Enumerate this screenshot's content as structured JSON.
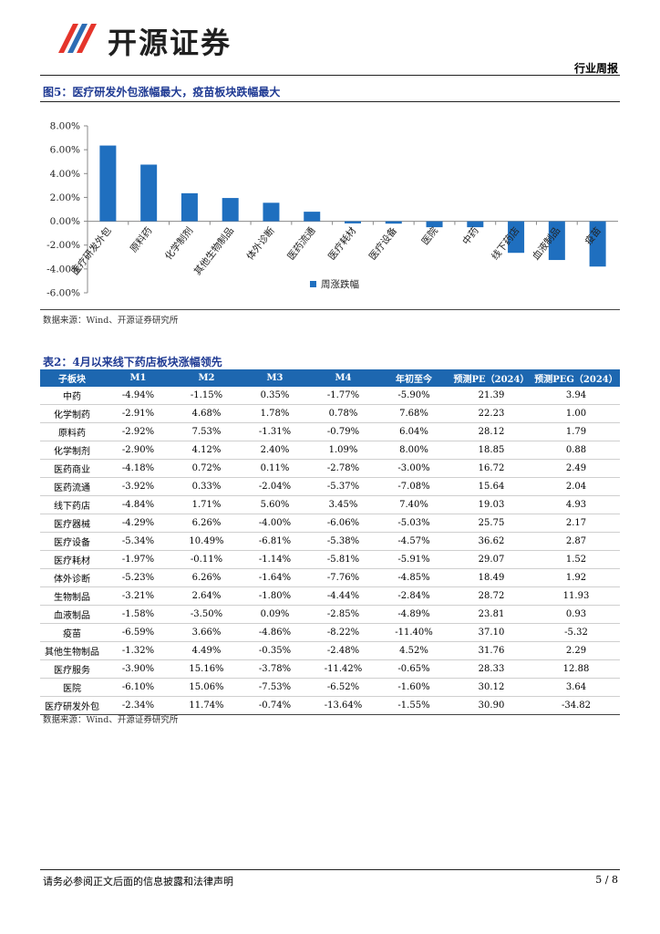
{
  "header": {
    "brand": "开源证券",
    "doc_type": "行业周报"
  },
  "figure": {
    "title": "图5：医疗研发外包涨幅最大，疫苗板块跌幅最大",
    "source": "数据来源：Wind、开源证券研究所"
  },
  "chart_data": {
    "type": "bar",
    "categories": [
      "医疗研发外包",
      "原料药",
      "化学制剂",
      "其他生物制品",
      "体外诊断",
      "医药流通",
      "医疗耗材",
      "医疗设备",
      "医院",
      "中药",
      "线下药店",
      "血液制品",
      "疫苗"
    ],
    "series": [
      {
        "name": "周涨跌幅",
        "values": [
          6.35,
          4.75,
          2.35,
          1.95,
          1.55,
          0.8,
          -0.18,
          -0.2,
          -0.5,
          -0.5,
          -2.65,
          -3.25,
          -3.8
        ]
      }
    ],
    "ylim": [
      -6,
      8
    ],
    "yticks": [
      "8.00%",
      "6.00%",
      "4.00%",
      "2.00%",
      "0.00%",
      "-2.00%",
      "-4.00%",
      "-6.00%"
    ],
    "legend_position": "bottom-center",
    "color": "#1f6fbf"
  },
  "table": {
    "title": "表2：4月以来线下药店板块涨幅领先",
    "headers": [
      "子板块",
      "M1",
      "M2",
      "M3",
      "M4",
      "年初至今",
      "预测PE（2024）",
      "预测PEG（2024）"
    ],
    "rows": [
      [
        "中药",
        "-4.94%",
        "-1.15%",
        "0.35%",
        "-1.77%",
        "-5.90%",
        "21.39",
        "3.94"
      ],
      [
        "化学制药",
        "-2.91%",
        "4.68%",
        "1.78%",
        "0.78%",
        "7.68%",
        "22.23",
        "1.00"
      ],
      [
        "原料药",
        "-2.92%",
        "7.53%",
        "-1.31%",
        "-0.79%",
        "6.04%",
        "28.12",
        "1.79"
      ],
      [
        "化学制剂",
        "-2.90%",
        "4.12%",
        "2.40%",
        "1.09%",
        "8.00%",
        "18.85",
        "0.88"
      ],
      [
        "医药商业",
        "-4.18%",
        "0.72%",
        "0.11%",
        "-2.78%",
        "-3.00%",
        "16.72",
        "2.49"
      ],
      [
        "医药流通",
        "-3.92%",
        "0.33%",
        "-2.04%",
        "-5.37%",
        "-7.08%",
        "15.64",
        "2.04"
      ],
      [
        "线下药店",
        "-4.84%",
        "1.71%",
        "5.60%",
        "3.45%",
        "7.40%",
        "19.03",
        "4.93"
      ],
      [
        "医疗器械",
        "-4.29%",
        "6.26%",
        "-4.00%",
        "-6.06%",
        "-5.03%",
        "25.75",
        "2.17"
      ],
      [
        "医疗设备",
        "-5.34%",
        "10.49%",
        "-6.81%",
        "-5.38%",
        "-4.57%",
        "36.62",
        "2.87"
      ],
      [
        "医疗耗材",
        "-1.97%",
        "-0.11%",
        "-1.14%",
        "-5.81%",
        "-5.91%",
        "29.07",
        "1.52"
      ],
      [
        "体外诊断",
        "-5.23%",
        "6.26%",
        "-1.64%",
        "-7.76%",
        "-4.85%",
        "18.49",
        "1.92"
      ],
      [
        "生物制品",
        "-3.21%",
        "2.64%",
        "-1.80%",
        "-4.44%",
        "-2.84%",
        "28.72",
        "11.93"
      ],
      [
        "血液制品",
        "-1.58%",
        "-3.50%",
        "0.09%",
        "-2.85%",
        "-4.89%",
        "23.81",
        "0.93"
      ],
      [
        "疫苗",
        "-6.59%",
        "3.66%",
        "-4.86%",
        "-8.22%",
        "-11.40%",
        "37.10",
        "-5.32"
      ],
      [
        "其他生物制品",
        "-1.32%",
        "4.49%",
        "-0.35%",
        "-2.48%",
        "4.52%",
        "31.76",
        "2.29"
      ],
      [
        "医疗服务",
        "-3.90%",
        "15.16%",
        "-3.78%",
        "-11.42%",
        "-0.65%",
        "28.33",
        "12.88"
      ],
      [
        "医院",
        "-6.10%",
        "15.06%",
        "-7.53%",
        "-6.52%",
        "-1.60%",
        "30.12",
        "3.64"
      ],
      [
        "医疗研发外包",
        "-2.34%",
        "11.74%",
        "-0.74%",
        "-13.64%",
        "-1.55%",
        "30.90",
        "-34.82"
      ]
    ],
    "source": "数据来源：Wind、开源证券研究所"
  },
  "footer": {
    "disclaimer": "请务必参阅正文后面的信息披露和法律声明",
    "page": "5 / 8"
  }
}
